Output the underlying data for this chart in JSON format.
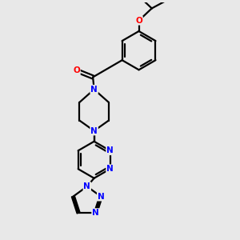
{
  "bg_color": "#e8e8e8",
  "bond_color": "#000000",
  "N_color": "#0000ff",
  "O_color": "#ff0000",
  "line_width": 1.6,
  "font_size_atom": 7.5,
  "fig_width": 3.0,
  "fig_height": 3.0,
  "dpi": 100,
  "xlim": [
    0,
    10
  ],
  "ylim": [
    0,
    10
  ]
}
